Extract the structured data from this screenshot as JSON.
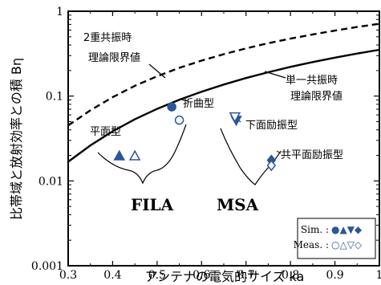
{
  "chart_data": {
    "type": "scatter",
    "title": "",
    "xlabel": "アンテナの電気的サイズ ka",
    "ylabel": "比帯域と放射効率との積 Bη",
    "xlim": [
      0.3,
      1.0
    ],
    "ylim": [
      0.001,
      1
    ],
    "y_scale": "log",
    "x_ticks": [
      "0.3",
      "0.4",
      "0.5",
      "0.6",
      "0.7",
      "0.8",
      "0.9",
      "1"
    ],
    "y_ticks": [
      "0.001",
      "0.01",
      "0.1",
      "1"
    ],
    "curves": [
      {
        "name": "単一共振時理論限界値",
        "style": "solid",
        "x": [
          0.3,
          0.35,
          0.4,
          0.45,
          0.5,
          0.55,
          0.6,
          0.65,
          0.7,
          0.75,
          0.8,
          0.85,
          0.9,
          0.95,
          1.0
        ],
        "y": [
          0.0168,
          0.0262,
          0.0384,
          0.0532,
          0.0706,
          0.0904,
          0.1125,
          0.1368,
          0.163,
          0.191,
          0.221,
          0.252,
          0.284,
          0.317,
          0.351
        ]
      },
      {
        "name": "2重共振時理論限界値",
        "style": "dashed",
        "x": [
          0.3,
          0.35,
          0.4,
          0.45,
          0.5,
          0.55,
          0.6,
          0.65,
          0.7,
          0.75,
          0.8,
          0.85,
          0.9,
          0.95,
          1.0
        ],
        "y": [
          0.045,
          0.068,
          0.097,
          0.132,
          0.171,
          0.215,
          0.262,
          0.312,
          0.365,
          0.42,
          0.476,
          0.533,
          0.592,
          0.652,
          0.712
        ]
      }
    ],
    "points": [
      {
        "group": "平面型",
        "kind": "Sim.",
        "marker": "triangle-up",
        "x": 0.415,
        "y": 0.0197
      },
      {
        "group": "平面型",
        "kind": "Meas.",
        "marker": "triangle-up",
        "x": 0.45,
        "y": 0.0197
      },
      {
        "group": "折曲型",
        "kind": "Sim.",
        "marker": "circle",
        "x": 0.533,
        "y": 0.0746
      },
      {
        "group": "折曲型",
        "kind": "Meas.",
        "marker": "circle",
        "x": 0.55,
        "y": 0.052
      },
      {
        "group": "下面励振型",
        "kind": "Sim.",
        "marker": "triangle-down",
        "x": 0.678,
        "y": 0.052
      },
      {
        "group": "下面励振型",
        "kind": "Meas.",
        "marker": "triangle-down",
        "x": 0.675,
        "y": 0.057
      },
      {
        "group": "共平面励振型",
        "kind": "Sim.",
        "marker": "diamond",
        "x": 0.757,
        "y": 0.0175
      },
      {
        "group": "共平面励振型",
        "kind": "Meas.",
        "marker": "diamond",
        "x": 0.757,
        "y": 0.0152
      }
    ],
    "marker_color": "#2b579a",
    "annotations": {
      "double_resonance": [
        "2重共振時",
        "理論限界値"
      ],
      "single_resonance": [
        "単一共振時",
        "理論限界値"
      ],
      "planar": "平面型",
      "folded": "折曲型",
      "bottom_fed": "下面励振型",
      "coplanar_fed": "共平面励振型",
      "fila": "FILA",
      "msa": "MSA"
    },
    "legend": {
      "position": "bottom-right",
      "sim_label": "Sim. :",
      "sim_symbols": "●▲▼◆",
      "meas_label": "Meas. :",
      "meas_symbols": "○△▽◇"
    }
  }
}
